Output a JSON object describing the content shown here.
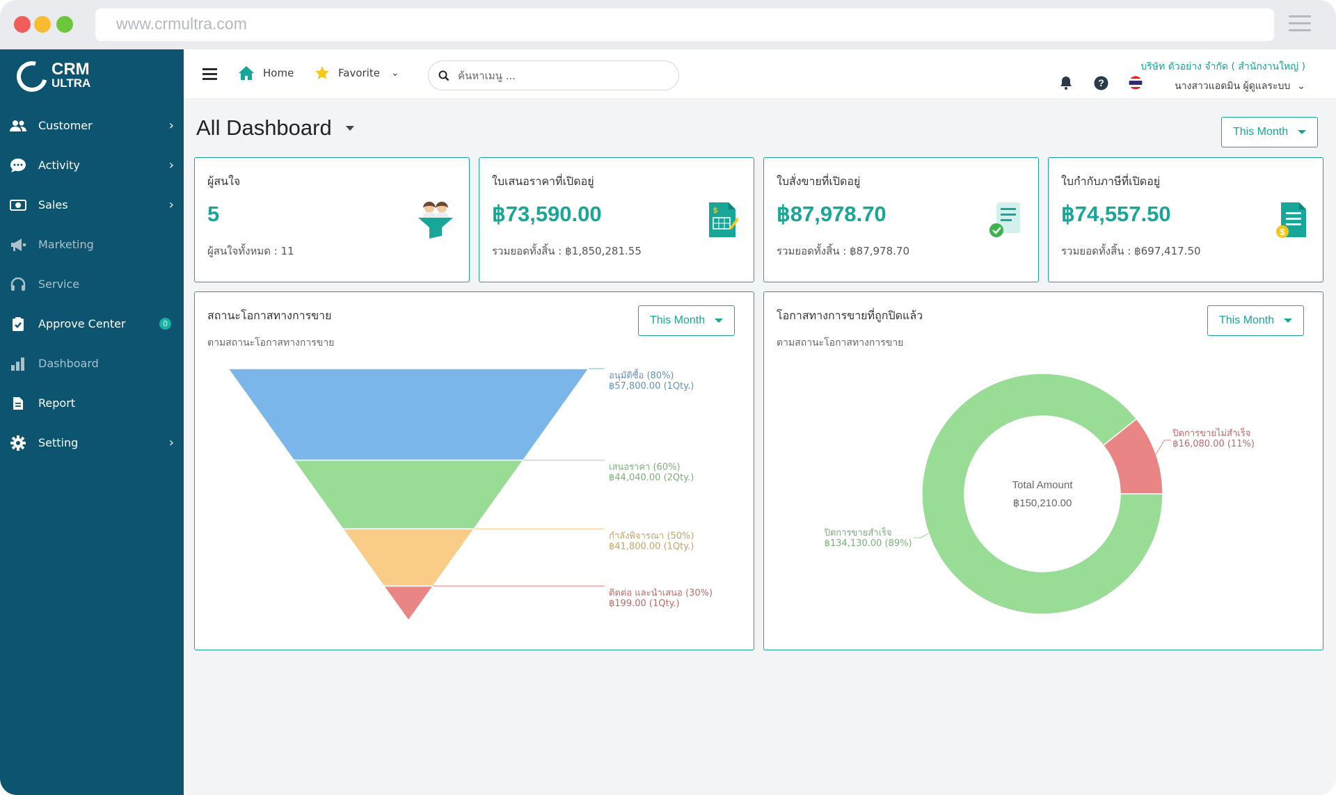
{
  "browser": {
    "url": "www.crmultra.com"
  },
  "logo": {
    "line1": "CRM",
    "line2": "ULTRA"
  },
  "sidebar": {
    "items": [
      {
        "label": "Customer"
      },
      {
        "label": "Activity"
      },
      {
        "label": "Sales"
      },
      {
        "label": "Marketing"
      },
      {
        "label": "Service"
      },
      {
        "label": "Approve Center",
        "badge": "0"
      },
      {
        "label": "Dashboard"
      },
      {
        "label": "Report"
      },
      {
        "label": "Setting"
      }
    ]
  },
  "topbar": {
    "home_label": "Home",
    "favorite_label": "Favorite",
    "search_placeholder": "ค้นหาเมนู ...",
    "company": "บริษัท ตัวอย่าง จำกัด ( สำนักงานใหญ่ )",
    "user": "นางสาวแอดมิน ผู้ดูแลระบบ"
  },
  "dashboard": {
    "title": "All Dashboard",
    "period_label": "This Month",
    "cards": [
      {
        "title": "ผู้สนใจ",
        "value": "5",
        "sub": "ผู้สนใจทั้งหมด : 11"
      },
      {
        "title": "ใบเสนอราคาที่เปิดอยู่",
        "value": "฿73,590.00",
        "sub": "รวมยอดทั้งสิ้น : ฿1,850,281.55"
      },
      {
        "title": "ใบสั่งขายที่เปิดอยู่",
        "value": "฿87,978.70",
        "sub": "รวมยอดทั้งสิ้น : ฿87,978.70"
      },
      {
        "title": "ใบกำกับภาษีที่เปิดอยู่",
        "value": "฿74,557.50",
        "sub": "รวมยอดทั้งสิ้น : ฿697,417.50"
      }
    ],
    "funnel_panel": {
      "title": "สถานะโอกาสทางการขาย",
      "subtitle": "ตามสถานะโอกาสทางการขาย",
      "period_label": "This Month"
    },
    "donut_panel": {
      "title": "โอกาสทางการขายที่ถูกปิดแล้ว",
      "subtitle": "ตามสถานะโอกาสทางการขาย",
      "period_label": "This Month"
    }
  },
  "chart_data": [
    {
      "type": "funnel",
      "title": "สถานะโอกาสทางการขาย",
      "stages": [
        {
          "name": "อนุมัติซื้อ",
          "percent": 80,
          "amount": "฿57,800.00",
          "qty": "1Qty.",
          "label1": "อนุมัติซื้อ (80%)",
          "label2": "฿57,800.00 (1Qty.)",
          "color": "#7ab6ea"
        },
        {
          "name": "เสนอราคา",
          "percent": 60,
          "amount": "฿44,040.00",
          "qty": "2Qty.",
          "label1": "เสนอราคา (60%)",
          "label2": "฿44,040.00 (2Qty.)",
          "color": "#98dc95"
        },
        {
          "name": "กำลังพิจารณา",
          "percent": 50,
          "amount": "฿41,800.00",
          "qty": "1Qty.",
          "label1": "กำลังพิจารณา (50%)",
          "label2": "฿41,800.00 (1Qty.)",
          "color": "#f9cc87"
        },
        {
          "name": "ติดต่อ และนำเสนอ",
          "percent": 30,
          "amount": "฿199.00",
          "qty": "1Qty.",
          "label1": "ติดต่อ และนำเสนอ (30%)",
          "label2": "฿199.00 (1Qty.)",
          "color": "#ea8585"
        }
      ]
    },
    {
      "type": "pie",
      "title": "โอกาสทางการขายที่ถูกปิดแล้ว",
      "center_title": "Total Amount",
      "center_value": "฿150,210.00",
      "slices": [
        {
          "name": "ปิดการขายสำเร็จ",
          "value": 134130.0,
          "percent": 89,
          "label1": "ปิดการขายสำเร็จ",
          "label2": "฿134,130.00 (89%)",
          "color": "#98dc95"
        },
        {
          "name": "ปิดการขายไม่สำเร็จ",
          "value": 16080.0,
          "percent": 11,
          "label1": "ปิดการขายไม่สำเร็จ",
          "label2": "฿16,080.00 (11%)",
          "color": "#ea8585"
        }
      ]
    }
  ]
}
